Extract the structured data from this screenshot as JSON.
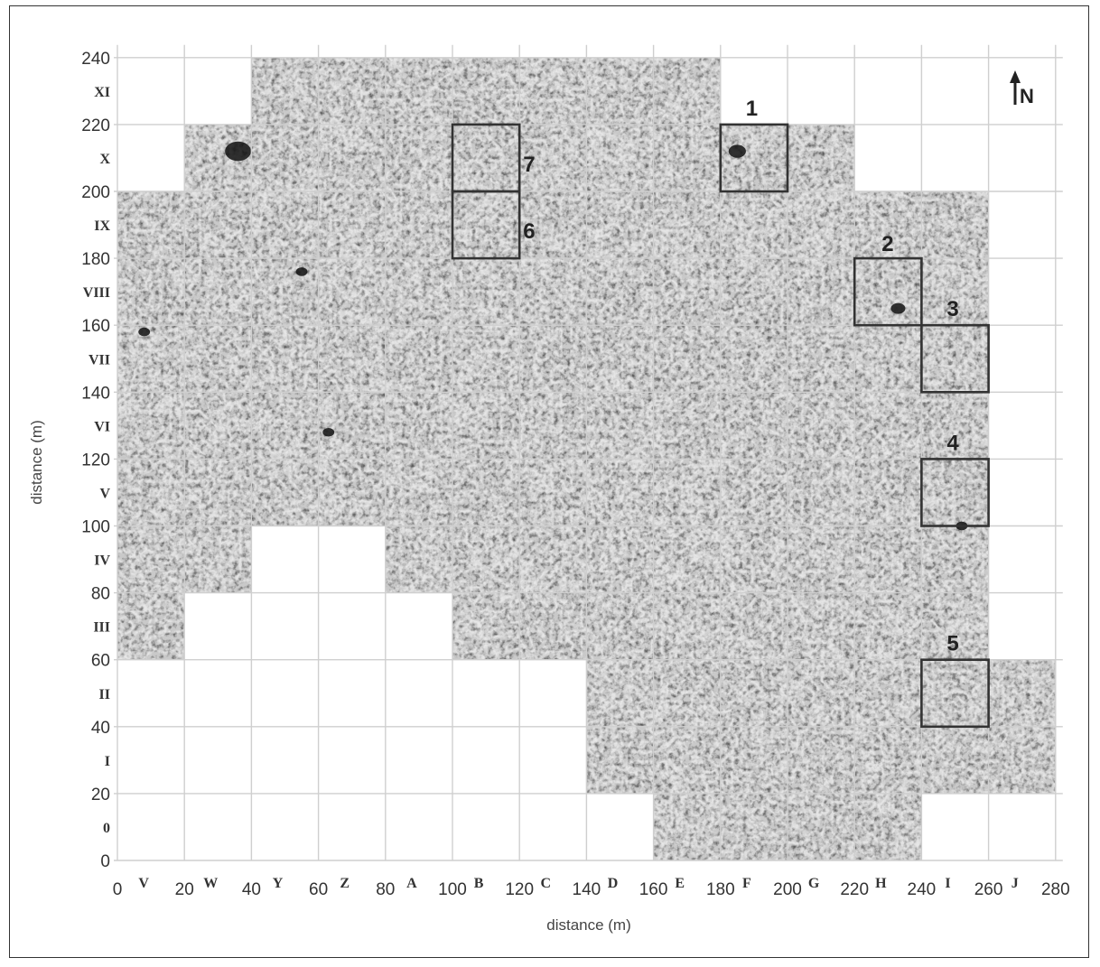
{
  "figure": {
    "x_axis_label": "distance (m)",
    "y_axis_label": "distance (m)",
    "north_label": "N",
    "x_ticks": [
      "0",
      "20",
      "40",
      "60",
      "80",
      "100",
      "120",
      "140",
      "160",
      "180",
      "200",
      "220",
      "240",
      "260",
      "280"
    ],
    "y_ticks": [
      "0",
      "20",
      "40",
      "60",
      "80",
      "100",
      "120",
      "140",
      "160",
      "180",
      "200",
      "220",
      "240"
    ],
    "x_grid_labels": [
      "V",
      "W",
      "Y",
      "Z",
      "A",
      "B",
      "C",
      "D",
      "E",
      "F",
      "G",
      "H",
      "I",
      "J"
    ],
    "y_grid_labels": [
      "0",
      "I",
      "II",
      "III",
      "IV",
      "V",
      "VI",
      "VII",
      "VIII",
      "IX",
      "X",
      "XI"
    ],
    "survey_coverage_rows": [
      {
        "y0": 0,
        "y1": 20,
        "x0": 160,
        "x1": 240
      },
      {
        "y0": 20,
        "y1": 40,
        "x0": 140,
        "x1": 280
      },
      {
        "y0": 40,
        "y1": 60,
        "x0": 140,
        "x1": 280
      },
      {
        "y0": 60,
        "y1": 80,
        "x0": 0,
        "x1": 20
      },
      {
        "y0": 60,
        "y1": 80,
        "x0": 100,
        "x1": 260
      },
      {
        "y0": 80,
        "y1": 100,
        "x0": 0,
        "x1": 40
      },
      {
        "y0": 80,
        "y1": 100,
        "x0": 80,
        "x1": 260
      },
      {
        "y0": 100,
        "y1": 200,
        "x0": 0,
        "x1": 260
      },
      {
        "y0": 200,
        "y1": 220,
        "x0": 20,
        "x1": 220
      },
      {
        "y0": 220,
        "y1": 240,
        "x0": 40,
        "x1": 180
      }
    ],
    "boxes": [
      {
        "label": "1",
        "x0": 180,
        "x1": 200,
        "y0": 200,
        "y1": 220
      },
      {
        "label": "2",
        "x0": 220,
        "x1": 240,
        "y0": 160,
        "y1": 180
      },
      {
        "label": "3",
        "x0": 240,
        "x1": 260,
        "y0": 140,
        "y1": 160
      },
      {
        "label": "4",
        "x0": 240,
        "x1": 260,
        "y0": 100,
        "y1": 120
      },
      {
        "label": "5",
        "x0": 240,
        "x1": 260,
        "y0": 40,
        "y1": 60
      },
      {
        "label": "6",
        "x0": 100,
        "x1": 120,
        "y0": 180,
        "y1": 200
      },
      {
        "label": "7",
        "x0": 100,
        "x1": 120,
        "y0": 200,
        "y1": 220
      }
    ],
    "colors": {
      "grid": "#cfcfcf",
      "survey_light": "#c9c9c9",
      "survey_dark": "#8a8a8a",
      "box": "#333333"
    }
  }
}
